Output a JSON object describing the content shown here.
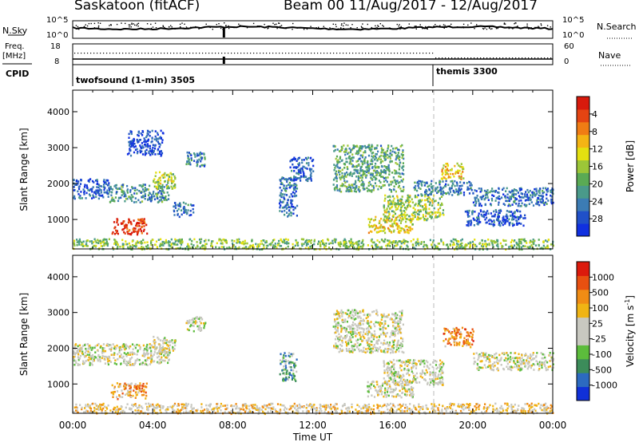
{
  "header": {
    "station": "Saskatoon (fitACF)",
    "beam": "Beam 00",
    "date_range": "11/Aug/2017 - 12/Aug/2017"
  },
  "nsky_panel": {
    "left_label": "N.Sky",
    "right_label": "N.Search",
    "left_ticks": [
      "10^5",
      "10^0"
    ],
    "right_ticks": [
      "10^5",
      "10^0"
    ]
  },
  "freq_panel": {
    "left_label_1": "Freq.",
    "left_label_2": "[MHz]",
    "right_label": "Nave",
    "left_ticks": [
      "18",
      "8"
    ],
    "right_ticks": [
      "60",
      "0"
    ]
  },
  "cpid_panel": {
    "label": "CPID",
    "programs": [
      {
        "name": "twofsound (1-min) 3505",
        "start_hour": 0.0
      },
      {
        "name": "themis 3300",
        "start_hour": 18.05
      }
    ]
  },
  "x_axis": {
    "label": "Time UT",
    "ticks": [
      "00:00",
      "04:00",
      "08:00",
      "12:00",
      "16:00",
      "20:00",
      "00:00"
    ],
    "tick_hours": [
      0,
      4,
      8,
      12,
      16,
      20,
      24
    ]
  },
  "chart_data": [
    {
      "type": "heatmap",
      "title": "",
      "xlabel": "Time UT",
      "ylabel": "Slant Range [km]",
      "xlim_hours": [
        0,
        24
      ],
      "ylim": [
        180,
        4600
      ],
      "yticks": [
        1000,
        2000,
        3000,
        4000
      ],
      "colorbar": {
        "label": "Power [dB]",
        "ticks": [
          "4",
          "8",
          "12",
          "16",
          "20",
          "24",
          "28"
        ],
        "colors": [
          "#1030e0",
          "#2050c8",
          "#3c7cb4",
          "#4a9a8a",
          "#5aaa54",
          "#9cc638",
          "#e4e010",
          "#f4b414",
          "#f07c14",
          "#e44412",
          "#d81a0c"
        ]
      },
      "regions": [
        {
          "t0": 0.0,
          "t1": 1.8,
          "r0": 1600,
          "r1": 2150,
          "v": 0.15
        },
        {
          "t0": 1.8,
          "t1": 4.8,
          "r0": 1500,
          "r1": 2000,
          "v": 0.3
        },
        {
          "t0": 4.0,
          "t1": 5.1,
          "r0": 1850,
          "r1": 2350,
          "v": 0.5
        },
        {
          "t0": 1.9,
          "t1": 3.7,
          "r0": 600,
          "r1": 1050,
          "v": 0.95
        },
        {
          "t0": 5.6,
          "t1": 6.6,
          "r0": 2500,
          "r1": 2900,
          "v": 0.25
        },
        {
          "t0": 5.0,
          "t1": 6.0,
          "r0": 1100,
          "r1": 1500,
          "v": 0.2
        },
        {
          "t0": 2.7,
          "t1": 4.5,
          "r0": 2800,
          "r1": 3500,
          "v": 0.1
        },
        {
          "t0": 10.3,
          "t1": 11.2,
          "r0": 1100,
          "r1": 2200,
          "v": 0.2
        },
        {
          "t0": 10.8,
          "t1": 12.0,
          "r0": 2100,
          "r1": 2750,
          "v": 0.15
        },
        {
          "t0": 13.0,
          "t1": 16.5,
          "r0": 1800,
          "r1": 3100,
          "v": 0.35
        },
        {
          "t0": 14.7,
          "t1": 17.0,
          "r0": 650,
          "r1": 1100,
          "v": 0.6
        },
        {
          "t0": 15.5,
          "t1": 18.5,
          "r0": 1000,
          "r1": 1700,
          "v": 0.5
        },
        {
          "t0": 17.0,
          "t1": 20.0,
          "r0": 1700,
          "r1": 2100,
          "v": 0.25
        },
        {
          "t0": 18.4,
          "t1": 19.5,
          "r0": 2150,
          "r1": 2600,
          "v": 0.65
        },
        {
          "t0": 20.0,
          "t1": 24.0,
          "r0": 1400,
          "r1": 1900,
          "v": 0.2
        },
        {
          "t0": 19.6,
          "t1": 22.6,
          "r0": 850,
          "r1": 1300,
          "v": 0.15
        },
        {
          "t0": 0.0,
          "t1": 24.0,
          "r0": 190,
          "r1": 480,
          "v": 0.45
        }
      ]
    },
    {
      "type": "heatmap",
      "title": "",
      "xlabel": "Time UT",
      "ylabel": "Slant Range [km]",
      "xlim_hours": [
        0,
        24
      ],
      "ylim": [
        180,
        4600
      ],
      "yticks": [
        1000,
        2000,
        3000,
        4000
      ],
      "colorbar": {
        "label": "Velocity [m s^-1]",
        "ticks": [
          "1000",
          "500",
          "100",
          "25",
          "-25",
          "-100",
          "-500",
          "-1000"
        ],
        "colors": [
          "#1030d8",
          "#2c6ac0",
          "#3c8c5a",
          "#5cbc3c",
          "#c8c8c0",
          "#c8c8c0",
          "#f0b414",
          "#f08c14",
          "#e85010",
          "#dc1a0c"
        ]
      },
      "regions": [
        {
          "t0": 0.0,
          "t1": 4.8,
          "r0": 1550,
          "r1": 2150,
          "v": 0.5
        },
        {
          "t0": 4.0,
          "t1": 5.1,
          "r0": 1850,
          "r1": 2350,
          "v": 0.5
        },
        {
          "t0": 1.9,
          "t1": 3.7,
          "r0": 600,
          "r1": 1050,
          "v": 0.72
        },
        {
          "t0": 5.6,
          "t1": 6.6,
          "r0": 2500,
          "r1": 2900,
          "v": 0.5
        },
        {
          "t0": 10.3,
          "t1": 11.2,
          "r0": 1100,
          "r1": 1900,
          "v": 0.3
        },
        {
          "t0": 13.0,
          "t1": 16.5,
          "r0": 1900,
          "r1": 3100,
          "v": 0.5
        },
        {
          "t0": 14.7,
          "t1": 17.0,
          "r0": 650,
          "r1": 1100,
          "v": 0.5
        },
        {
          "t0": 15.5,
          "t1": 18.5,
          "r0": 1000,
          "r1": 1700,
          "v": 0.5
        },
        {
          "t0": 18.5,
          "t1": 20.0,
          "r0": 2050,
          "r1": 2600,
          "v": 0.75
        },
        {
          "t0": 20.0,
          "t1": 24.0,
          "r0": 1400,
          "r1": 1900,
          "v": 0.5
        },
        {
          "t0": 0.0,
          "t1": 24.0,
          "r0": 190,
          "r1": 480,
          "v": 0.6
        }
      ]
    }
  ]
}
